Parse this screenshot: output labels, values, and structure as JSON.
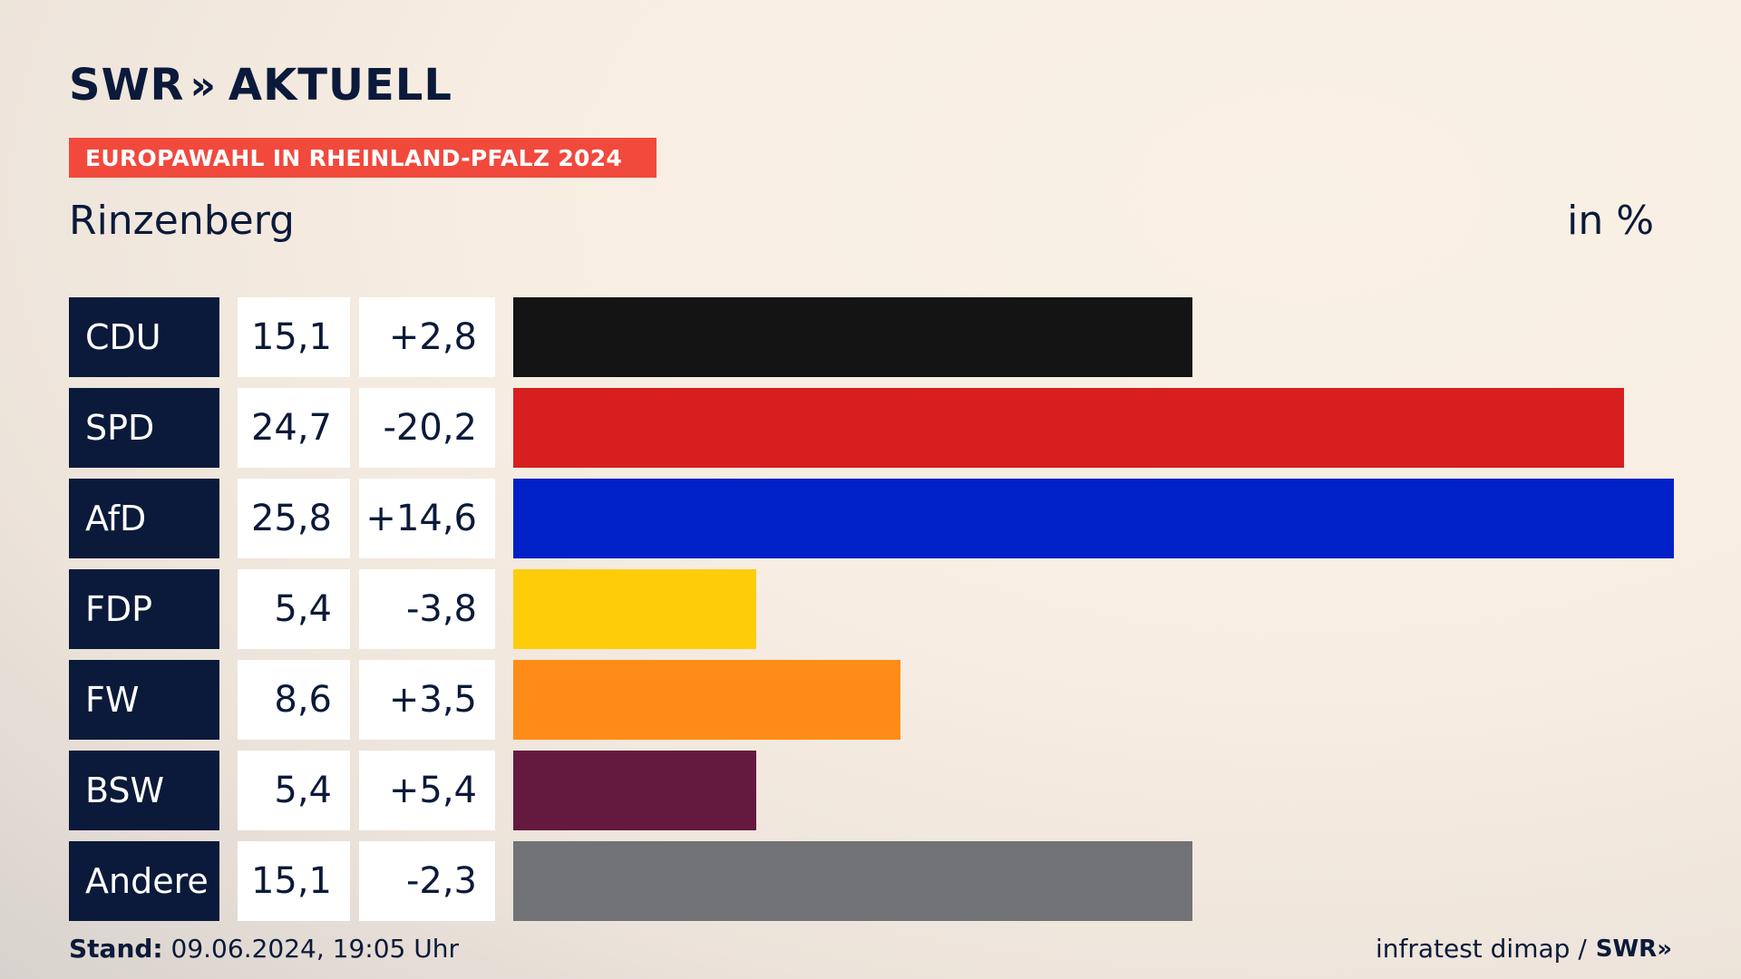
{
  "brand": {
    "name": "SWR",
    "chevrons": "»",
    "product": "AKTUELL"
  },
  "banner": {
    "text": "EUROPAWAHL IN RHEINLAND-PFALZ 2024",
    "color": "#f2493d"
  },
  "region": "Rinzenberg",
  "unit": "in %",
  "footer": {
    "stand_label": "Stand:",
    "stand_value": "09.06.2024, 19:05 Uhr",
    "source": "infratest dimap /",
    "source_brand": "SWR»"
  },
  "chart_data": {
    "type": "bar",
    "orientation": "horizontal",
    "categories": [
      "CDU",
      "SPD",
      "AfD",
      "FDP",
      "FW",
      "BSW",
      "Andere"
    ],
    "values": [
      15.1,
      24.7,
      25.8,
      5.4,
      8.6,
      5.4,
      15.1
    ],
    "value_labels": [
      "15,1",
      "24,7",
      "25,8",
      "5,4",
      "8,6",
      "5,4",
      "15,1"
    ],
    "diff_labels": [
      "+2,8",
      "-20,2",
      "+14,6",
      "-3,8",
      "+3,5",
      "+5,4",
      "-2,3"
    ],
    "diffs": [
      2.8,
      -20.2,
      14.6,
      -3.8,
      3.5,
      5.4,
      -2.3
    ],
    "colors": [
      "#141414",
      "#d71f1f",
      "#0021c8",
      "#ffcc0a",
      "#ff8c16",
      "#641a3e",
      "#717275"
    ],
    "xlim": [
      0,
      25.8
    ],
    "title": "Rinzenberg",
    "unit": "in %"
  }
}
